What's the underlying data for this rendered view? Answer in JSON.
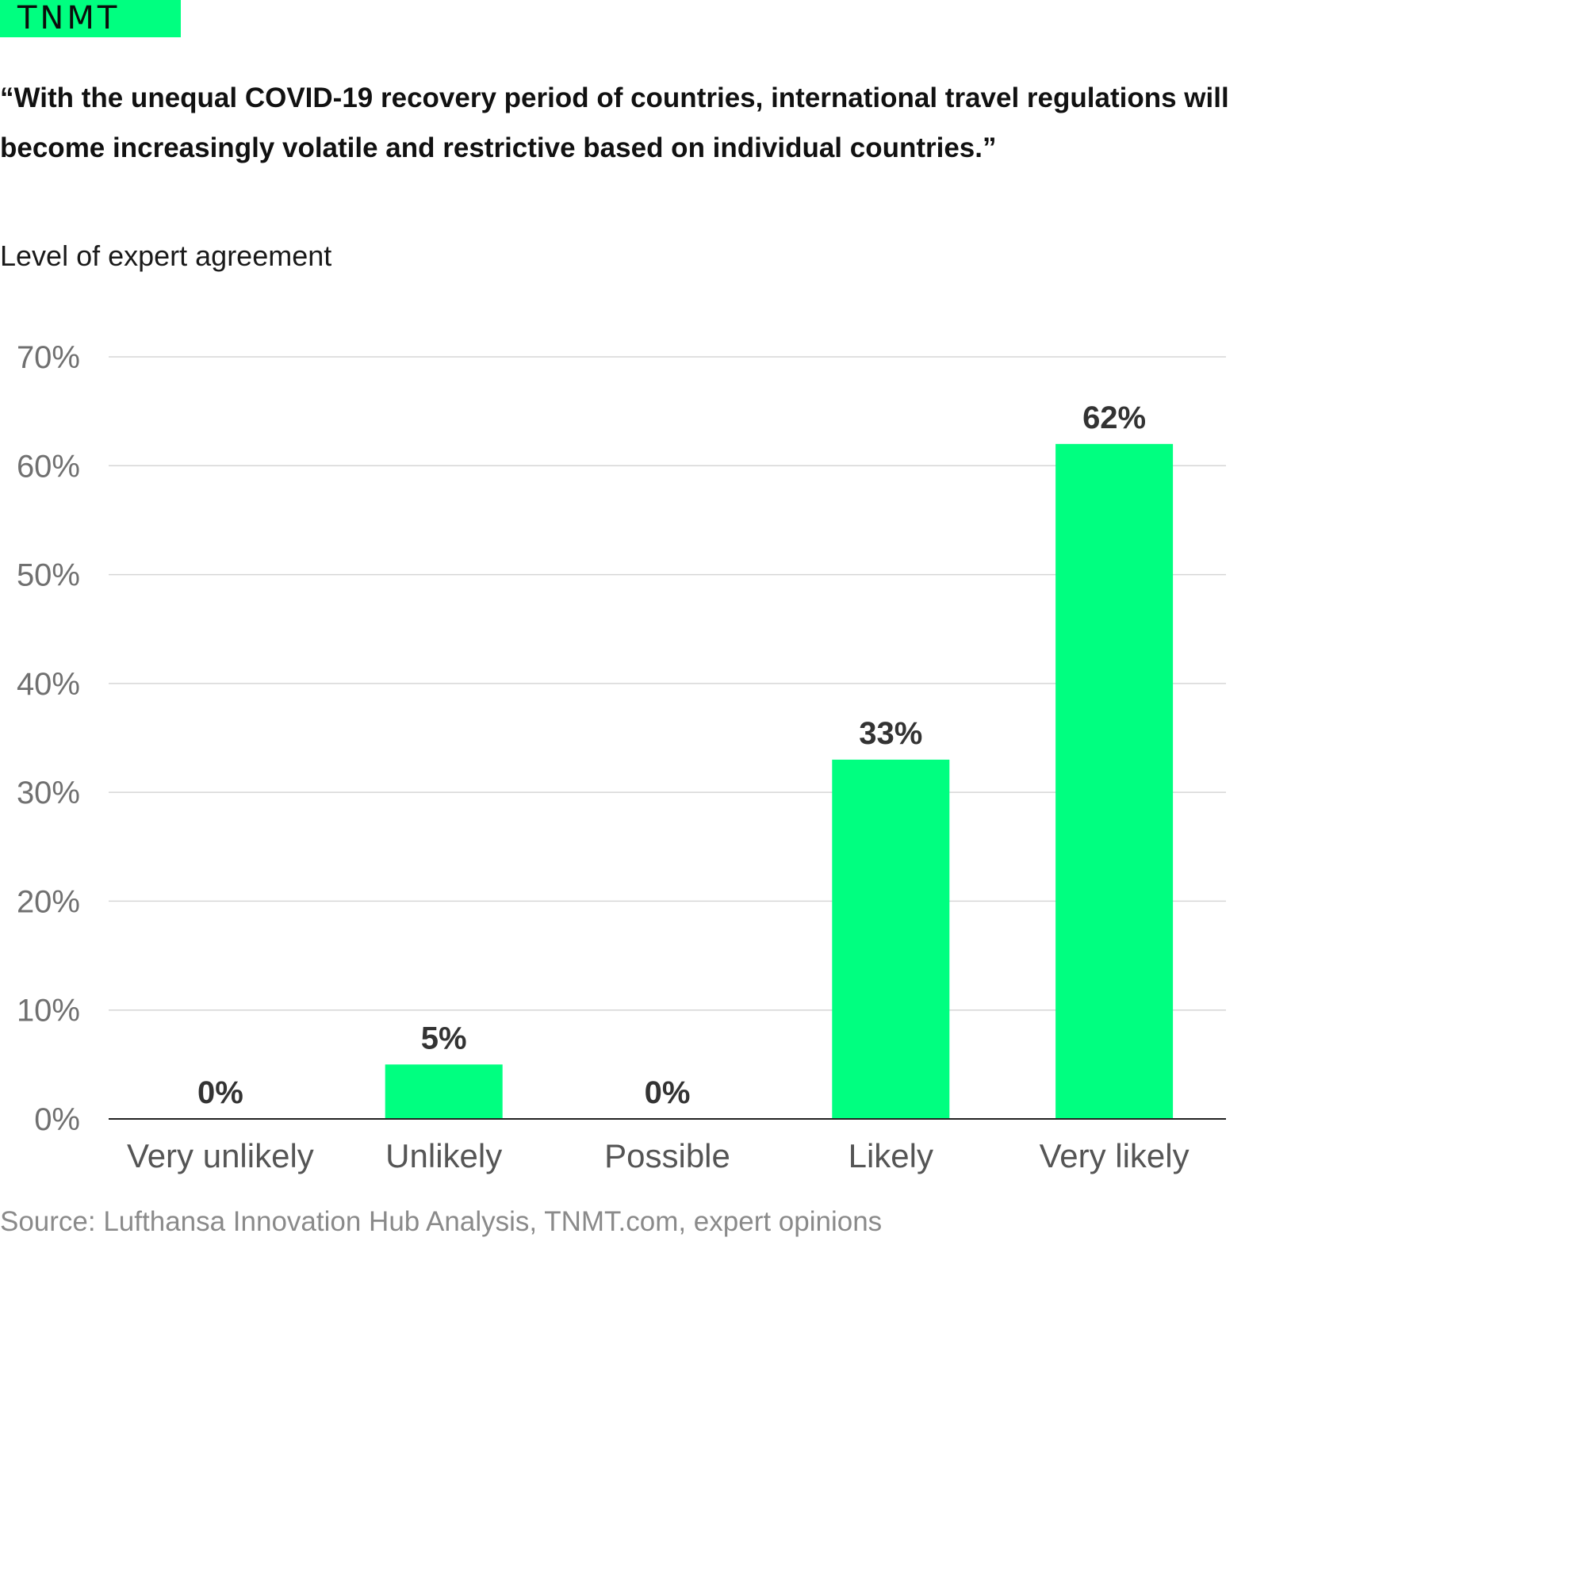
{
  "brand": {
    "logo_text": "TNMT",
    "accent_color": "#00ff80"
  },
  "title": "“With the unequal COVID-19 recovery period of countries, international travel regulations will become increasingly volatile and restrictive based on individual countries.”",
  "source": "Source: Lufthansa Innovation Hub Analysis, TNMT.com, expert opinions",
  "chart_data": {
    "type": "bar",
    "title": "“With the unequal COVID-19 recovery period of countries, international travel regulations will become increasingly volatile and restrictive based on individual countries.”",
    "xlabel": "",
    "ylabel": "Level of expert agreement",
    "categories": [
      "Very unlikely",
      "Unlikely",
      "Possible",
      "Likely",
      "Very likely"
    ],
    "values": [
      0,
      5,
      0,
      33,
      62
    ],
    "value_labels": [
      "0%",
      "5%",
      "0%",
      "33%",
      "62%"
    ],
    "ylim": [
      0,
      70
    ],
    "yticks": [
      0,
      10,
      20,
      30,
      40,
      50,
      60,
      70
    ],
    "ytick_labels": [
      "0%",
      "10%",
      "20%",
      "30%",
      "40%",
      "50%",
      "60%",
      "70%"
    ],
    "bar_color": "#00ff80",
    "grid": true,
    "legend": "none"
  }
}
